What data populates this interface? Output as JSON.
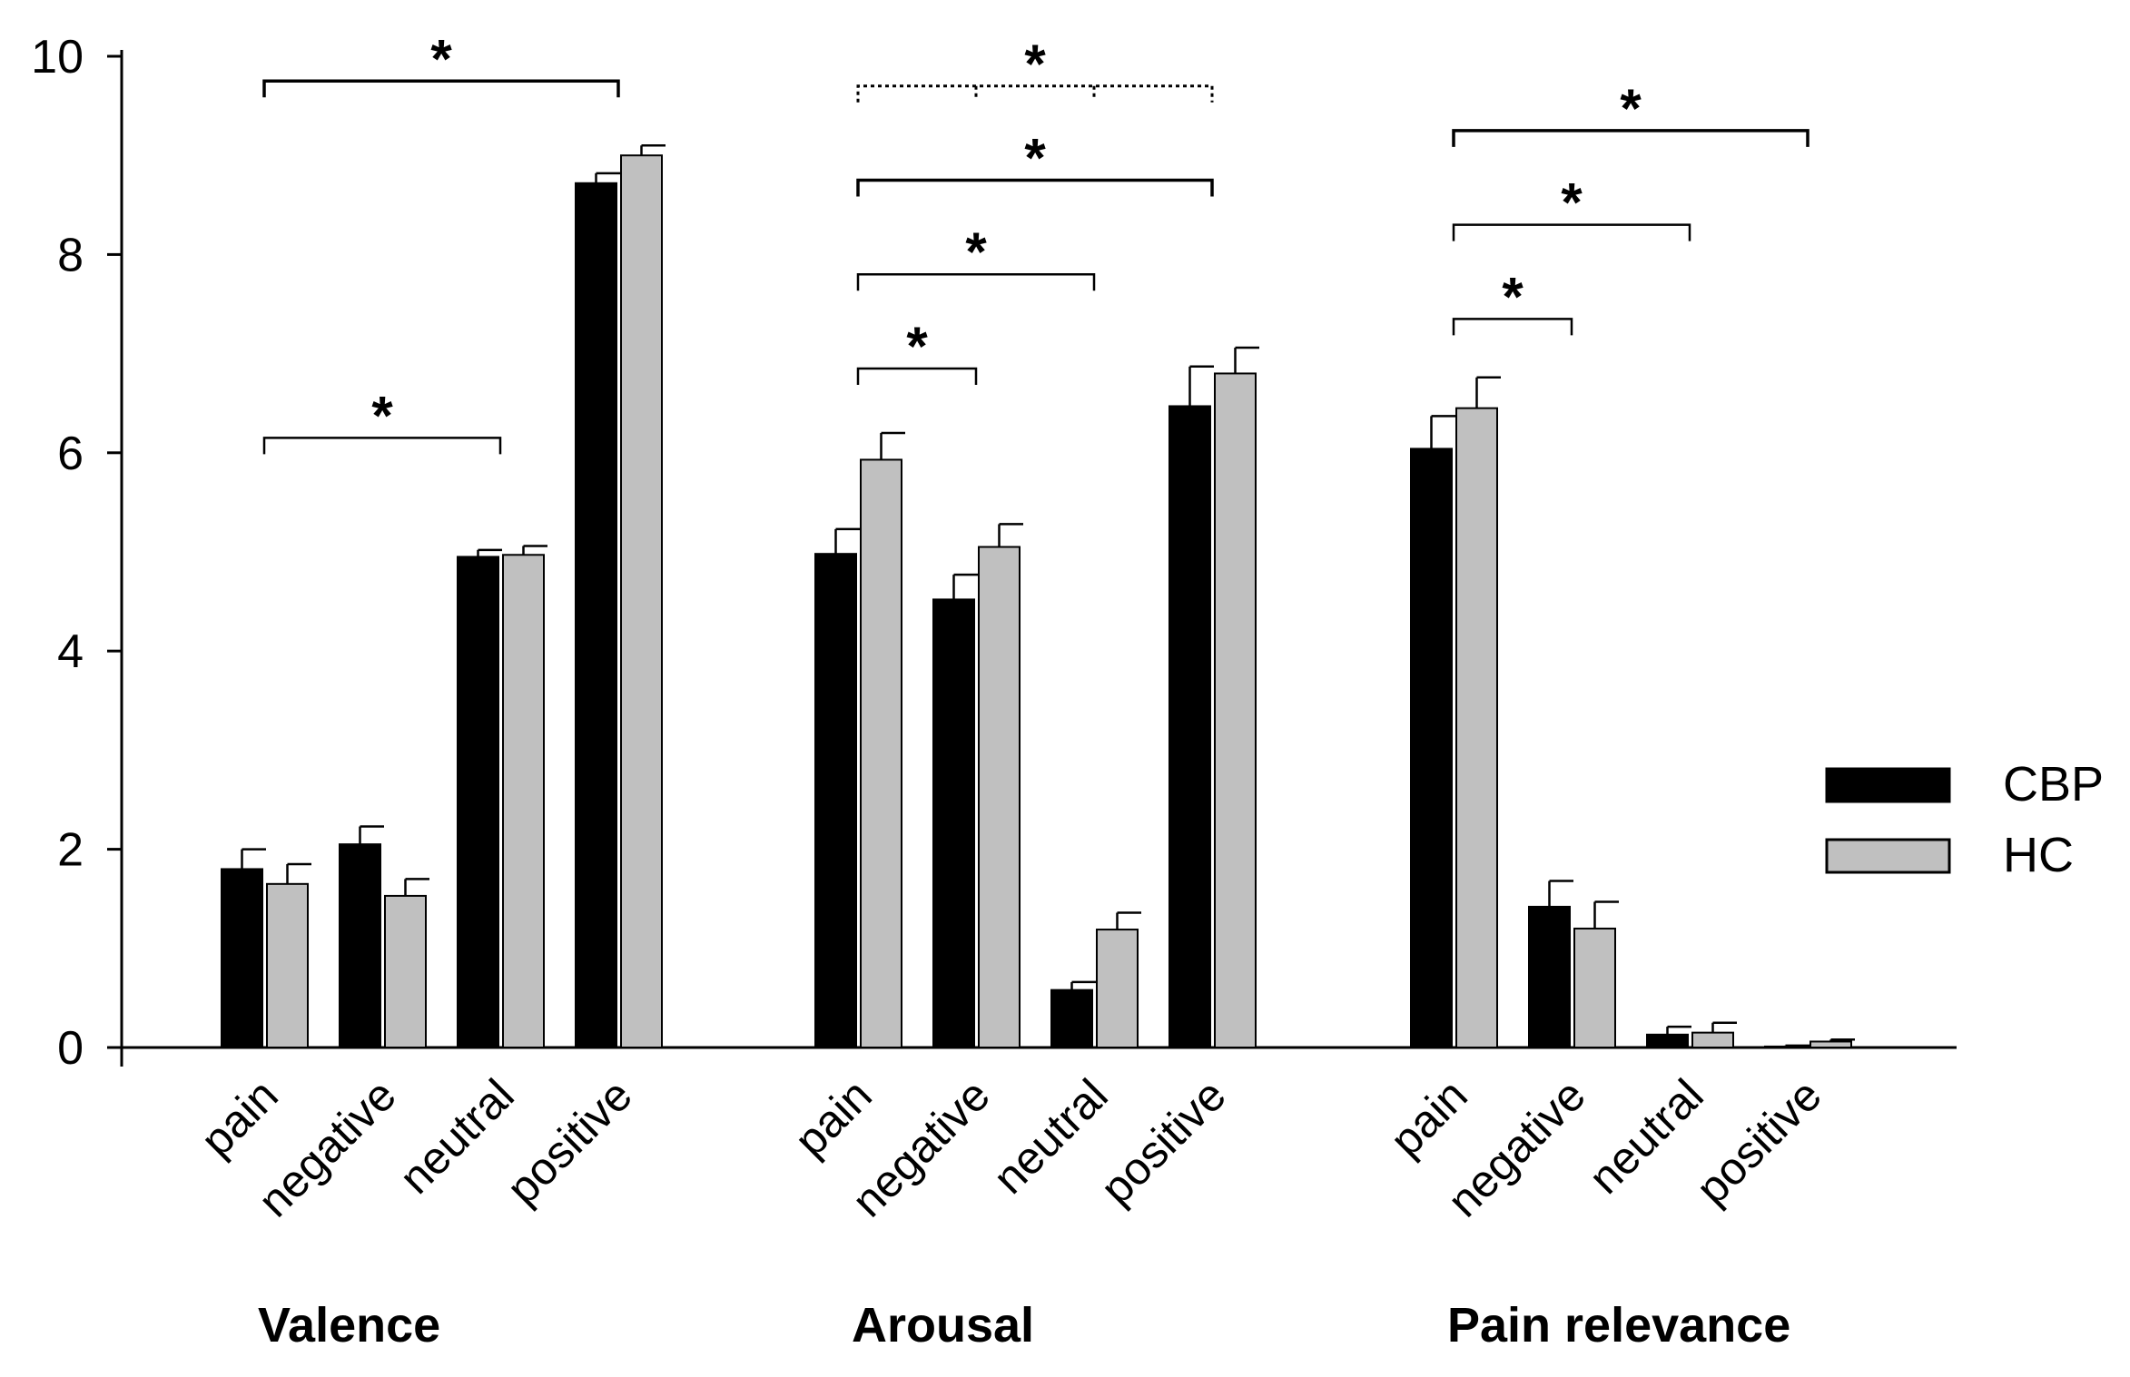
{
  "chart_data": {
    "type": "bar",
    "title": "",
    "xlabel": "",
    "ylabel": "",
    "ylim": [
      0,
      10
    ],
    "yticks": [
      "0",
      "2",
      "4",
      "6",
      "8",
      "10"
    ],
    "groups": [
      {
        "label": "Valence",
        "categories": [
          "pain",
          "negative",
          "neutral",
          "positive"
        ],
        "series": [
          {
            "name": "CBP",
            "values": [
              1.8,
              2.05,
              4.95,
              8.72
            ],
            "errors": [
              0.2,
              0.18,
              0.07,
              0.1
            ]
          },
          {
            "name": "HC",
            "values": [
              1.65,
              1.53,
              4.97,
              9.0
            ],
            "errors": [
              0.2,
              0.17,
              0.09,
              0.1
            ]
          }
        ],
        "significance": [
          {
            "from": 0,
            "to": 3,
            "label": "*",
            "style": "solid",
            "level": 9.75
          },
          {
            "from": 0,
            "to": 2,
            "label": "*",
            "style": "solid",
            "level": 6.15
          }
        ]
      },
      {
        "label": "Arousal",
        "categories": [
          "pain",
          "negative",
          "neutral",
          "positive"
        ],
        "series": [
          {
            "name": "CBP",
            "values": [
              4.98,
              4.52,
              0.58,
              6.47
            ],
            "errors": [
              0.25,
              0.25,
              0.08,
              0.4
            ]
          },
          {
            "name": "HC",
            "values": [
              5.93,
              5.05,
              1.19,
              6.8
            ],
            "errors": [
              0.27,
              0.23,
              0.17,
              0.26
            ]
          }
        ],
        "significance": [
          {
            "from": 0,
            "to": 3,
            "label": "*",
            "style": "dotted",
            "level": 9.7
          },
          {
            "from": 0,
            "to": 3,
            "label": "*",
            "style": "solid",
            "level": 8.75
          },
          {
            "from": 0,
            "to": 2,
            "label": "*",
            "style": "solid",
            "level": 7.8
          },
          {
            "from": 0,
            "to": 1,
            "label": "*",
            "style": "solid",
            "level": 6.85
          }
        ]
      },
      {
        "label": "Pain relevance",
        "categories": [
          "pain",
          "negative",
          "neutral",
          "positive"
        ],
        "series": [
          {
            "name": "CBP",
            "values": [
              6.04,
              1.42,
              0.13,
              0.01
            ],
            "errors": [
              0.33,
              0.26,
              0.08,
              0.01
            ]
          },
          {
            "name": "HC",
            "values": [
              6.45,
              1.2,
              0.15,
              0.06
            ],
            "errors": [
              0.31,
              0.27,
              0.1,
              0.02
            ]
          }
        ],
        "significance": [
          {
            "from": 0,
            "to": 3,
            "label": "*",
            "style": "solid",
            "level": 9.25
          },
          {
            "from": 0,
            "to": 2,
            "label": "*",
            "style": "solid",
            "level": 8.3
          },
          {
            "from": 0,
            "to": 1,
            "label": "*",
            "style": "solid",
            "level": 7.35
          }
        ]
      }
    ],
    "legend": {
      "position": "right",
      "items": [
        {
          "name": "CBP",
          "color": "#000000"
        },
        {
          "name": "HC",
          "color": "#c0c0c0"
        }
      ]
    },
    "colors": {
      "CBP": "#000000",
      "HC": "#c0c0c0",
      "axis": "#000000"
    }
  }
}
